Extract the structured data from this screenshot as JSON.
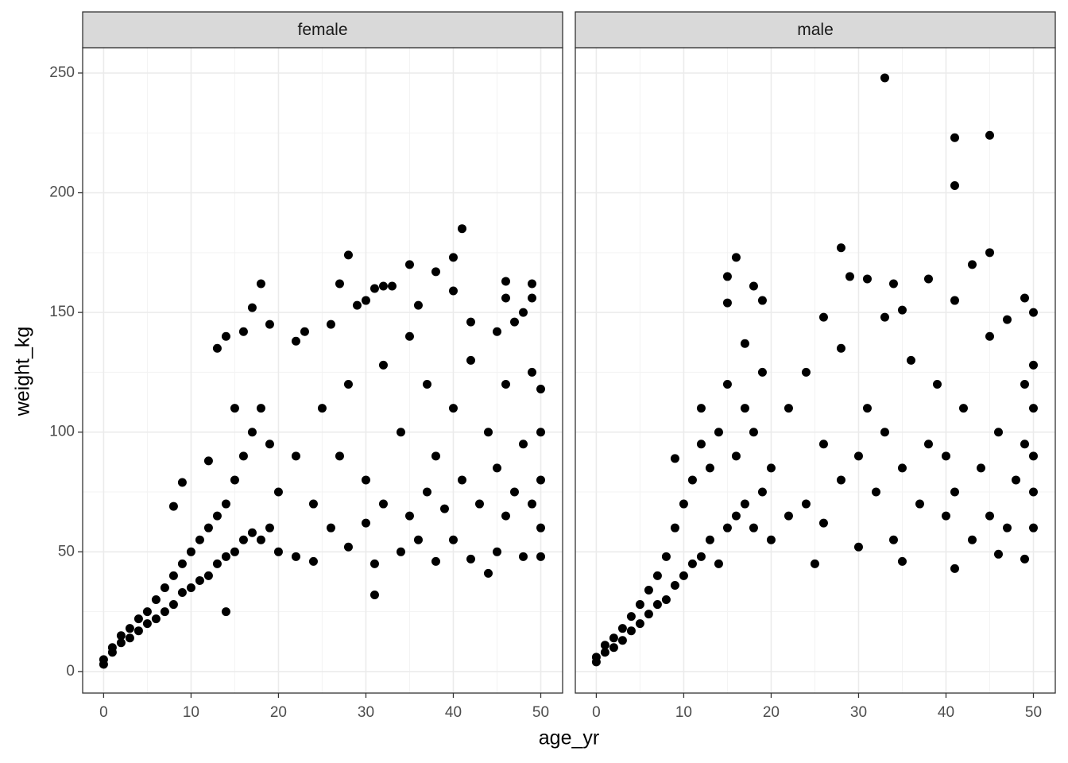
{
  "chart_data": {
    "type": "scatter",
    "xlabel": "age_yr",
    "ylabel": "weight_kg",
    "color": "#000000",
    "xlim": [
      -2.4,
      52.5
    ],
    "ylim": [
      -9,
      260.6
    ],
    "xticks": [
      0,
      10,
      20,
      30,
      40,
      50
    ],
    "yticks": [
      0,
      50,
      100,
      150,
      200,
      250
    ],
    "xminor": [
      5,
      15,
      25,
      35,
      45
    ],
    "yminor": [
      25,
      75,
      125,
      175,
      225
    ],
    "grid": true,
    "facets": [
      {
        "name": "female",
        "x": [
          41,
          28,
          40,
          18,
          27,
          35,
          38,
          46,
          49,
          33,
          31,
          32,
          29,
          30,
          36,
          46,
          49,
          17,
          40,
          48,
          14,
          16,
          19,
          23,
          22,
          13,
          26,
          31,
          14,
          44,
          42,
          47,
          45,
          0,
          0,
          1,
          1,
          2,
          2,
          3,
          3,
          4,
          4,
          5,
          5,
          6,
          6,
          7,
          7,
          8,
          8,
          9,
          9,
          10,
          10,
          11,
          11,
          12,
          12,
          13,
          13,
          14,
          14,
          15,
          15,
          16,
          16,
          17,
          17,
          18,
          18,
          19,
          19,
          9,
          8,
          12,
          15,
          20,
          20,
          22,
          22,
          24,
          24,
          25,
          26,
          27,
          28,
          28,
          30,
          30,
          31,
          32,
          32,
          34,
          34,
          35,
          35,
          36,
          37,
          37,
          38,
          38,
          39,
          40,
          40,
          41,
          42,
          42,
          43,
          44,
          45,
          45,
          46,
          46,
          47,
          48,
          48,
          49,
          49,
          50,
          50,
          50,
          50,
          50
        ],
        "values": [
          185,
          174,
          173,
          162,
          162,
          170,
          167,
          163,
          162,
          161,
          160,
          161,
          153,
          155,
          153,
          156,
          156,
          152,
          159,
          150,
          140,
          142,
          145,
          142,
          138,
          135,
          145,
          32,
          25,
          41,
          146,
          146,
          142,
          3,
          5,
          8,
          10,
          12,
          15,
          14,
          18,
          17,
          22,
          20,
          25,
          22,
          30,
          25,
          35,
          28,
          40,
          33,
          45,
          35,
          50,
          38,
          55,
          40,
          60,
          45,
          65,
          48,
          70,
          50,
          80,
          55,
          90,
          58,
          100,
          55,
          110,
          60,
          95,
          79,
          69,
          88,
          110,
          50,
          75,
          48,
          90,
          46,
          70,
          110,
          60,
          90,
          52,
          120,
          62,
          80,
          45,
          70,
          128,
          50,
          100,
          65,
          140,
          55,
          75,
          120,
          46,
          90,
          68,
          110,
          55,
          80,
          47,
          130,
          70,
          100,
          50,
          85,
          120,
          65,
          75,
          95,
          48,
          70,
          125,
          48,
          60,
          80,
          100,
          118
        ]
      },
      {
        "name": "male",
        "x": [
          33,
          45,
          41,
          41,
          45,
          43,
          28,
          16,
          15,
          29,
          31,
          34,
          38,
          18,
          19,
          41,
          35,
          49,
          50,
          15,
          26,
          33,
          41,
          46,
          49,
          35,
          25,
          17,
          12,
          0,
          0,
          1,
          1,
          2,
          2,
          3,
          3,
          4,
          4,
          5,
          5,
          6,
          6,
          7,
          7,
          8,
          8,
          9,
          9,
          9,
          10,
          10,
          11,
          11,
          12,
          12,
          13,
          13,
          14,
          14,
          15,
          15,
          16,
          16,
          17,
          17,
          18,
          18,
          19,
          19,
          20,
          20,
          22,
          22,
          24,
          24,
          26,
          26,
          28,
          28,
          30,
          30,
          31,
          32,
          33,
          34,
          35,
          36,
          37,
          38,
          39,
          40,
          40,
          41,
          42,
          43,
          44,
          45,
          45,
          46,
          47,
          47,
          48,
          49,
          49,
          50,
          50,
          50,
          50,
          50
        ],
        "values": [
          248,
          224,
          223,
          203,
          175,
          170,
          177,
          173,
          165,
          165,
          164,
          162,
          164,
          161,
          155,
          155,
          151,
          156,
          150,
          154,
          148,
          148,
          43,
          49,
          47,
          46,
          45,
          137,
          110,
          4,
          6,
          8,
          11,
          10,
          14,
          13,
          18,
          17,
          23,
          20,
          28,
          24,
          34,
          28,
          40,
          30,
          48,
          36,
          60,
          89,
          40,
          70,
          45,
          80,
          48,
          95,
          55,
          85,
          45,
          100,
          60,
          120,
          65,
          90,
          70,
          110,
          60,
          100,
          75,
          125,
          55,
          85,
          65,
          110,
          70,
          125,
          62,
          95,
          80,
          135,
          52,
          90,
          110,
          75,
          100,
          55,
          85,
          130,
          70,
          95,
          120,
          65,
          90,
          75,
          110,
          55,
          85,
          140,
          65,
          100,
          60,
          147,
          80,
          120,
          95,
          60,
          75,
          90,
          110,
          128
        ]
      }
    ]
  }
}
